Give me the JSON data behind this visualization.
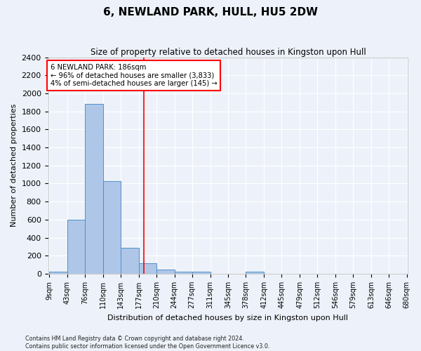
{
  "title": "6, NEWLAND PARK, HULL, HU5 2DW",
  "subtitle": "Size of property relative to detached houses in Kingston upon Hull",
  "xlabel": "Distribution of detached houses by size in Kingston upon Hull",
  "ylabel": "Number of detached properties",
  "bin_labels": [
    "9sqm",
    "43sqm",
    "76sqm",
    "110sqm",
    "143sqm",
    "177sqm",
    "210sqm",
    "244sqm",
    "277sqm",
    "311sqm",
    "345sqm",
    "378sqm",
    "412sqm",
    "445sqm",
    "479sqm",
    "512sqm",
    "546sqm",
    "579sqm",
    "613sqm",
    "646sqm",
    "680sqm"
  ],
  "bin_edges": [
    9,
    43,
    76,
    110,
    143,
    177,
    210,
    244,
    277,
    311,
    345,
    378,
    412,
    445,
    479,
    512,
    546,
    579,
    613,
    646,
    680
  ],
  "bar_values": [
    20,
    600,
    1880,
    1030,
    290,
    115,
    50,
    25,
    20,
    0,
    0,
    20,
    0,
    0,
    0,
    0,
    0,
    0,
    0,
    0
  ],
  "bar_color": "#aec6e8",
  "bar_edge_color": "#5090c8",
  "red_line_x": 186,
  "annotation_title": "6 NEWLAND PARK: 186sqm",
  "annotation_line1": "← 96% of detached houses are smaller (3,833)",
  "annotation_line2": "4% of semi-detached houses are larger (145) →",
  "ylim": [
    0,
    2400
  ],
  "yticks": [
    0,
    200,
    400,
    600,
    800,
    1000,
    1200,
    1400,
    1600,
    1800,
    2000,
    2200,
    2400
  ],
  "footer1": "Contains HM Land Registry data © Crown copyright and database right 2024.",
  "footer2": "Contains public sector information licensed under the Open Government Licence v3.0.",
  "background_color": "#edf2fa",
  "plot_background": "#edf2fa"
}
